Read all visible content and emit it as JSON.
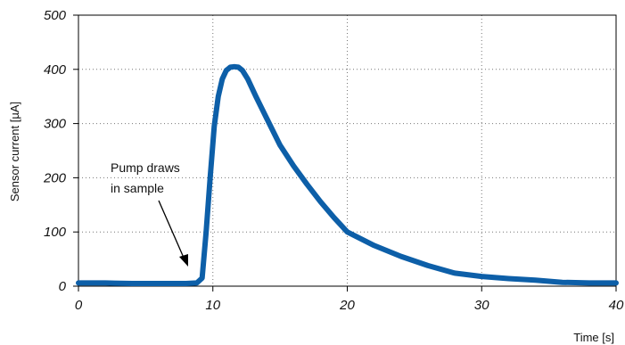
{
  "chart_data": {
    "type": "line",
    "xlabel": "Time [s]",
    "ylabel": "Sensor current [µA]",
    "xlim": [
      0,
      40
    ],
    "ylim": [
      0,
      500
    ],
    "x_ticks": [
      0,
      10,
      20,
      30,
      40
    ],
    "y_ticks": [
      0,
      100,
      200,
      300,
      400,
      500
    ],
    "grid": true,
    "line_color": "#0d5fa8",
    "series": [
      {
        "x": [
          0,
          2,
          4,
          6,
          7,
          8,
          8.8,
          9.2,
          9.5,
          9.8,
          10.1,
          10.4,
          10.7,
          11.0,
          11.3,
          11.6,
          11.9,
          12.2,
          12.6,
          13.2,
          14.0,
          15.0,
          16.0,
          17.0,
          18.0,
          19.0,
          20.0,
          22.0,
          24.0,
          26.0,
          28.0,
          30.0,
          32.0,
          34.0,
          36.0,
          38.0,
          40.0
        ],
        "y": [
          6,
          6,
          5,
          5,
          5,
          5,
          6,
          15,
          100,
          200,
          295,
          350,
          382,
          398,
          404,
          405,
          404,
          398,
          382,
          350,
          310,
          260,
          222,
          188,
          156,
          127,
          100,
          75,
          55,
          38,
          24,
          18,
          14,
          11,
          7,
          6,
          6
        ]
      }
    ],
    "annotations": [
      {
        "text_lines": [
          "Pump draws",
          "in sample"
        ],
        "arrow_to": {
          "x": 8.2,
          "y": 35
        }
      }
    ]
  }
}
